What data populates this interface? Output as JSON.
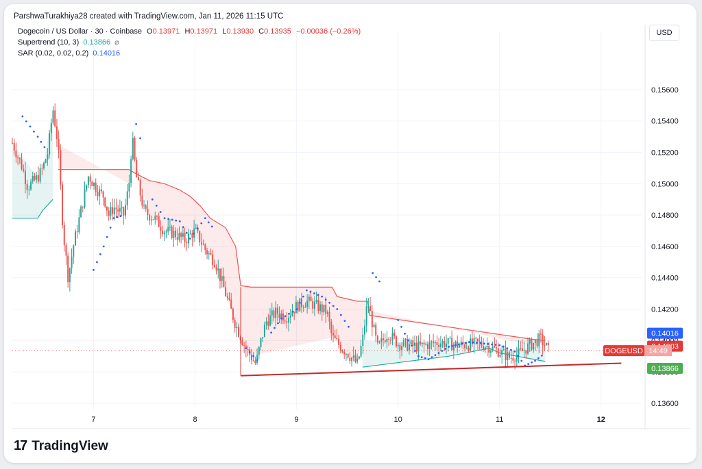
{
  "attribution": "ParshwaTurakhiya28 created with TradingView.com, Jan 11, 2026 11:15 UTC",
  "legend": {
    "symbol": "Dogecoin / US Dollar · 30 · Coinbase",
    "o_label": "O",
    "o_value": "0.13971",
    "h_label": "H",
    "h_value": "0.13971",
    "l_label": "L",
    "l_value": "0.13930",
    "c_label": "C",
    "c_value": "0.13935",
    "change": "−0.00036 (−0.26%)",
    "supertrend_label": "Supertrend (10, 3)",
    "supertrend_value": "0.13866",
    "supertrend_icon": "⌀",
    "sar_label": "SAR (0.02, 0.02, 0.2)",
    "sar_value": "0.14016"
  },
  "currency": "USD",
  "logo": {
    "mark": "17",
    "name": "TradingView"
  },
  "colors": {
    "up": "#26a69a",
    "down": "#ef5350",
    "sar": "#2962ff",
    "supertrend_down": "#ef5350",
    "supertrend_up": "#26a69a",
    "trendline": "#c62828",
    "grid": "#f0f3fa"
  },
  "chart_data": {
    "type": "candlestick",
    "title": "Dogecoin / US Dollar · 30 · Coinbase",
    "x_ticks": [
      "7",
      "8",
      "9",
      "10",
      "11",
      "12"
    ],
    "y_ticks": [
      "0.13600",
      "0.13800",
      "0.14000",
      "0.14200",
      "0.14400",
      "0.14600",
      "0.14800",
      "0.15000",
      "0.15200",
      "0.15400",
      "0.15600"
    ],
    "ylim": [
      0.1356,
      0.1577
    ],
    "xlim": [
      6.2,
      12.4
    ],
    "price_labels": [
      {
        "label": "0.14016",
        "value": 0.14016,
        "color": "#2962ff"
      },
      {
        "label": "0.14003",
        "value": 0.14003,
        "color": "#e53935"
      },
      {
        "label": "DOGEUSD",
        "value": 0.13935,
        "color": "#e53935",
        "extra": "14:49"
      },
      {
        "label": "0.13866",
        "value": 0.13866,
        "color": "#4caf50"
      }
    ],
    "current_price": 0.13935,
    "close_path": [
      [
        6.2,
        0.1526
      ],
      [
        6.3,
        0.151
      ],
      [
        6.35,
        0.1498
      ],
      [
        6.45,
        0.1504
      ],
      [
        6.5,
        0.151
      ],
      [
        6.55,
        0.152
      ],
      [
        6.6,
        0.1548
      ],
      [
        6.65,
        0.1525
      ],
      [
        6.7,
        0.147
      ],
      [
        6.75,
        0.144
      ],
      [
        6.8,
        0.146
      ],
      [
        6.85,
        0.1475
      ],
      [
        6.9,
        0.149
      ],
      [
        6.95,
        0.1505
      ],
      [
        7.0,
        0.15
      ],
      [
        7.05,
        0.1495
      ],
      [
        7.1,
        0.1492
      ],
      [
        7.15,
        0.148
      ],
      [
        7.2,
        0.1485
      ],
      [
        7.3,
        0.148
      ],
      [
        7.35,
        0.15
      ],
      [
        7.38,
        0.153
      ],
      [
        7.42,
        0.1505
      ],
      [
        7.5,
        0.1482
      ],
      [
        7.6,
        0.1478
      ],
      [
        7.7,
        0.147
      ],
      [
        7.8,
        0.1468
      ],
      [
        7.9,
        0.1464
      ],
      [
        8.0,
        0.147
      ],
      [
        8.1,
        0.1458
      ],
      [
        8.2,
        0.145
      ],
      [
        8.3,
        0.143
      ],
      [
        8.4,
        0.141
      ],
      [
        8.5,
        0.1395
      ],
      [
        8.6,
        0.1385
      ],
      [
        8.65,
        0.14
      ],
      [
        8.7,
        0.1412
      ],
      [
        8.8,
        0.1418
      ],
      [
        8.9,
        0.1415
      ],
      [
        9.0,
        0.1422
      ],
      [
        9.1,
        0.1425
      ],
      [
        9.2,
        0.1422
      ],
      [
        9.3,
        0.1418
      ],
      [
        9.35,
        0.1402
      ],
      [
        9.45,
        0.1395
      ],
      [
        9.5,
        0.1392
      ],
      [
        9.6,
        0.1385
      ],
      [
        9.65,
        0.14
      ],
      [
        9.7,
        0.1425
      ],
      [
        9.75,
        0.141
      ],
      [
        9.8,
        0.1395
      ],
      [
        9.9,
        0.1405
      ],
      [
        10.0,
        0.1398
      ],
      [
        10.2,
        0.1396
      ],
      [
        10.4,
        0.1399
      ],
      [
        10.6,
        0.1397
      ],
      [
        10.8,
        0.1398
      ],
      [
        10.9,
        0.1396
      ],
      [
        11.0,
        0.1393
      ],
      [
        11.1,
        0.1389
      ],
      [
        11.2,
        0.1392
      ],
      [
        11.3,
        0.1397
      ],
      [
        11.4,
        0.1401
      ],
      [
        11.45,
        0.1397
      ],
      [
        11.48,
        0.13935
      ]
    ],
    "supertrend_down": [
      [
        6.65,
        0.1509
      ],
      [
        7.35,
        0.1509
      ],
      [
        7.4,
        0.1507
      ],
      [
        7.55,
        0.1502
      ],
      [
        7.7,
        0.15
      ],
      [
        7.85,
        0.1496
      ],
      [
        7.95,
        0.1492
      ],
      [
        8.05,
        0.1486
      ],
      [
        8.15,
        0.1478
      ],
      [
        8.3,
        0.1472
      ],
      [
        8.4,
        0.146
      ],
      [
        8.45,
        0.1435
      ],
      [
        8.55,
        0.1434
      ],
      [
        9.35,
        0.1434
      ],
      [
        9.4,
        0.1428
      ],
      [
        9.6,
        0.1425
      ],
      [
        9.7,
        0.1425
      ],
      [
        9.72,
        0.1416
      ],
      [
        11.3,
        0.1401
      ],
      [
        11.45,
        0.14
      ]
    ],
    "supertrend_up": [
      [
        6.2,
        0.1478
      ],
      [
        6.45,
        0.1478
      ],
      [
        6.5,
        0.1483
      ],
      [
        6.6,
        0.149
      ],
      [
        9.65,
        0.1383
      ],
      [
        10.5,
        0.139
      ],
      [
        10.9,
        0.1395
      ],
      [
        11.0,
        0.1392
      ],
      [
        11.45,
        0.13866
      ]
    ],
    "sar_points": [
      [
        6.3,
        0.1543
      ],
      [
        6.45,
        0.153
      ],
      [
        6.55,
        0.152
      ],
      [
        6.68,
        0.156
      ],
      [
        6.75,
        0.153
      ],
      [
        6.85,
        0.15
      ],
      [
        6.95,
        0.147
      ],
      [
        7.0,
        0.1445
      ],
      [
        7.1,
        0.146
      ],
      [
        7.2,
        0.1478
      ],
      [
        7.3,
        0.148
      ],
      [
        7.42,
        0.1538
      ],
      [
        7.5,
        0.152
      ],
      [
        7.58,
        0.149
      ],
      [
        7.7,
        0.1478
      ],
      [
        7.85,
        0.1476
      ],
      [
        7.95,
        0.1465
      ],
      [
        8.1,
        0.1478
      ],
      [
        8.2,
        0.147
      ],
      [
        8.3,
        0.145
      ],
      [
        8.4,
        0.143
      ],
      [
        8.5,
        0.1395
      ],
      [
        8.65,
        0.1385
      ],
      [
        8.75,
        0.1405
      ],
      [
        8.85,
        0.1414
      ],
      [
        9.0,
        0.142
      ],
      [
        9.1,
        0.1432
      ],
      [
        9.25,
        0.1428
      ],
      [
        9.4,
        0.142
      ],
      [
        9.55,
        0.1405
      ],
      [
        9.75,
        0.1443
      ],
      [
        9.85,
        0.1435
      ],
      [
        10.0,
        0.1413
      ],
      [
        10.1,
        0.14
      ],
      [
        10.2,
        0.139
      ],
      [
        10.3,
        0.1388
      ],
      [
        10.5,
        0.1396
      ],
      [
        10.7,
        0.1399
      ],
      [
        10.85,
        0.1398
      ],
      [
        11.0,
        0.1397
      ],
      [
        11.15,
        0.1393
      ],
      [
        11.25,
        0.1384
      ],
      [
        11.35,
        0.1387
      ],
      [
        11.45,
        0.1392
      ]
    ],
    "trendline": [
      [
        8.45,
        0.13775
      ],
      [
        12.2,
        0.13855
      ]
    ]
  }
}
